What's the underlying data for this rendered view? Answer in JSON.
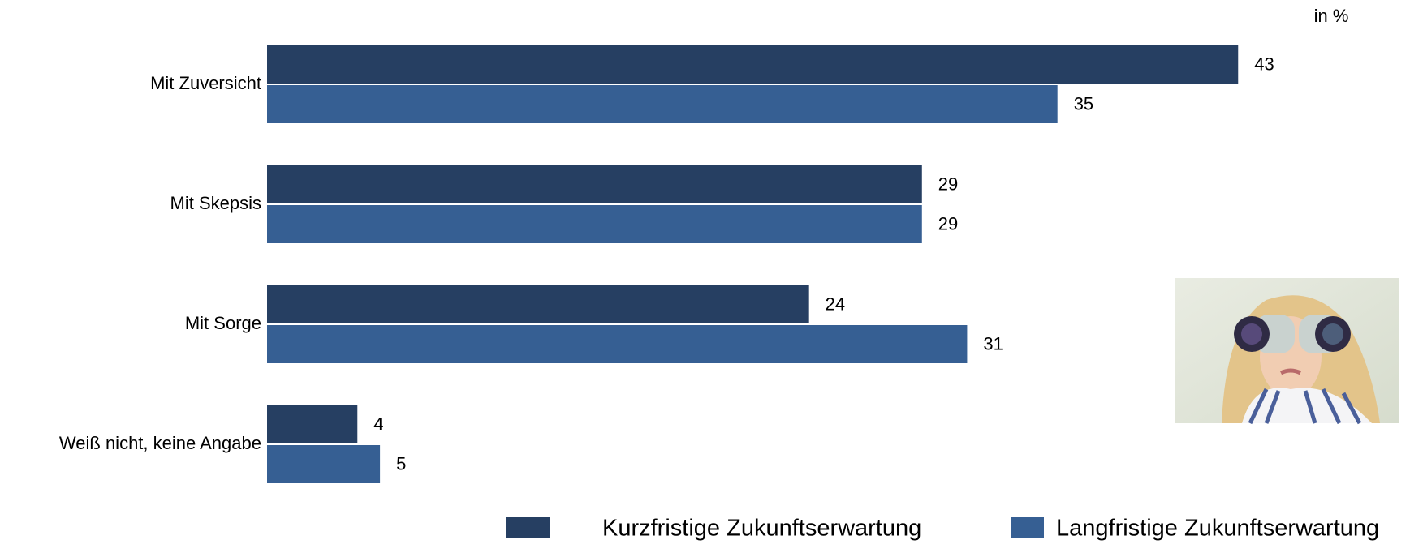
{
  "chart_data": {
    "type": "hbar",
    "unit_label": "in %",
    "categories": [
      "Mit Zuversicht",
      "Mit Skepsis",
      "Mit Sorge",
      "Weiß nicht, keine Angabe"
    ],
    "series": [
      {
        "name": "Kurzfristige Zukunftserwartung",
        "color": "#263f62",
        "values": [
          43,
          29,
          24,
          4
        ]
      },
      {
        "name": "Langfristige Zukunftserwartung",
        "color": "#365f93",
        "values": [
          35,
          29,
          31,
          5
        ]
      }
    ],
    "xlim": [
      0,
      50
    ]
  }
}
